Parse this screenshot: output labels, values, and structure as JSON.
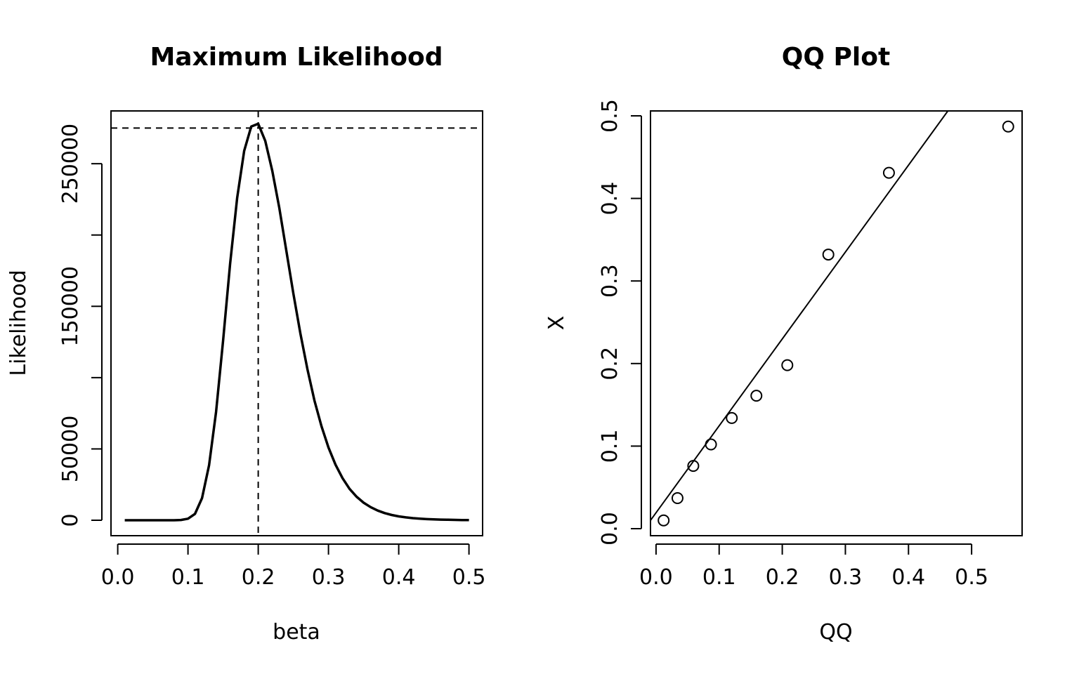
{
  "chart_data": [
    {
      "type": "line",
      "title": "Maximum Likelihood",
      "xlabel": "beta",
      "ylabel": "Likelihood",
      "xlim": [
        0.0,
        0.5
      ],
      "ylim": [
        0,
        287000
      ],
      "x_ticks": [
        0.0,
        0.1,
        0.2,
        0.3,
        0.4,
        0.5
      ],
      "x_tick_labels": [
        "0.0",
        "0.1",
        "0.2",
        "0.3",
        "0.4",
        "0.5"
      ],
      "y_ticks": [
        0,
        50000,
        100000,
        150000,
        200000,
        250000
      ],
      "y_tick_labels": [
        "0",
        "50000",
        "",
        "150000",
        "",
        "250000"
      ],
      "series": [
        {
          "x": [
            0.01,
            0.02,
            0.03,
            0.04,
            0.05,
            0.06,
            0.07,
            0.08,
            0.09,
            0.1,
            0.11,
            0.12,
            0.13,
            0.14,
            0.15,
            0.16,
            0.17,
            0.18,
            0.19,
            0.2,
            0.21,
            0.22,
            0.23,
            0.24,
            0.25,
            0.26,
            0.27,
            0.28,
            0.29,
            0.3,
            0.31,
            0.32,
            0.33,
            0.34,
            0.35,
            0.36,
            0.37,
            0.38,
            0.39,
            0.4,
            0.41,
            0.42,
            0.43,
            0.44,
            0.45,
            0.46,
            0.47,
            0.48,
            0.49,
            0.5
          ],
          "y": [
            0,
            0,
            0,
            0,
            0,
            0,
            0,
            0,
            200,
            1100,
            4500,
            15500,
            38500,
            76000,
            126000,
            180000,
            226000,
            259000,
            276000,
            278000,
            266000,
            245000,
            219000,
            189000,
            159000,
            131000,
            106000,
            84000,
            66000,
            51000,
            39000,
            29500,
            22000,
            16500,
            12300,
            9200,
            6800,
            5000,
            3700,
            2700,
            2000,
            1500,
            1100,
            800,
            600,
            450,
            330,
            240,
            170,
            120
          ]
        }
      ],
      "reference_lines": {
        "vertical_x": 0.2,
        "horizontal_y": 275000,
        "style": "dashed"
      }
    },
    {
      "type": "scatter",
      "title": "QQ Plot",
      "xlabel": "QQ",
      "ylabel": "X",
      "xlim": [
        0.0,
        0.58
      ],
      "ylim": [
        0.0,
        0.5
      ],
      "x_ticks": [
        0.0,
        0.1,
        0.2,
        0.3,
        0.4,
        0.5
      ],
      "x_tick_labels": [
        "0.0",
        "0.1",
        "0.2",
        "0.3",
        "0.4",
        "0.5"
      ],
      "y_ticks": [
        0.0,
        0.1,
        0.2,
        0.3,
        0.4,
        0.5
      ],
      "y_tick_labels": [
        "0.0",
        "0.1",
        "0.2",
        "0.3",
        "0.4",
        "0.5"
      ],
      "points": [
        {
          "x": 0.012,
          "y": 0.01
        },
        {
          "x": 0.034,
          "y": 0.037
        },
        {
          "x": 0.059,
          "y": 0.076
        },
        {
          "x": 0.087,
          "y": 0.102
        },
        {
          "x": 0.12,
          "y": 0.134
        },
        {
          "x": 0.159,
          "y": 0.161
        },
        {
          "x": 0.208,
          "y": 0.198
        },
        {
          "x": 0.273,
          "y": 0.332
        },
        {
          "x": 0.369,
          "y": 0.431
        },
        {
          "x": 0.558,
          "y": 0.487
        }
      ],
      "fit_line": {
        "intercept": 0.0193,
        "slope": 1.0524
      }
    }
  ]
}
